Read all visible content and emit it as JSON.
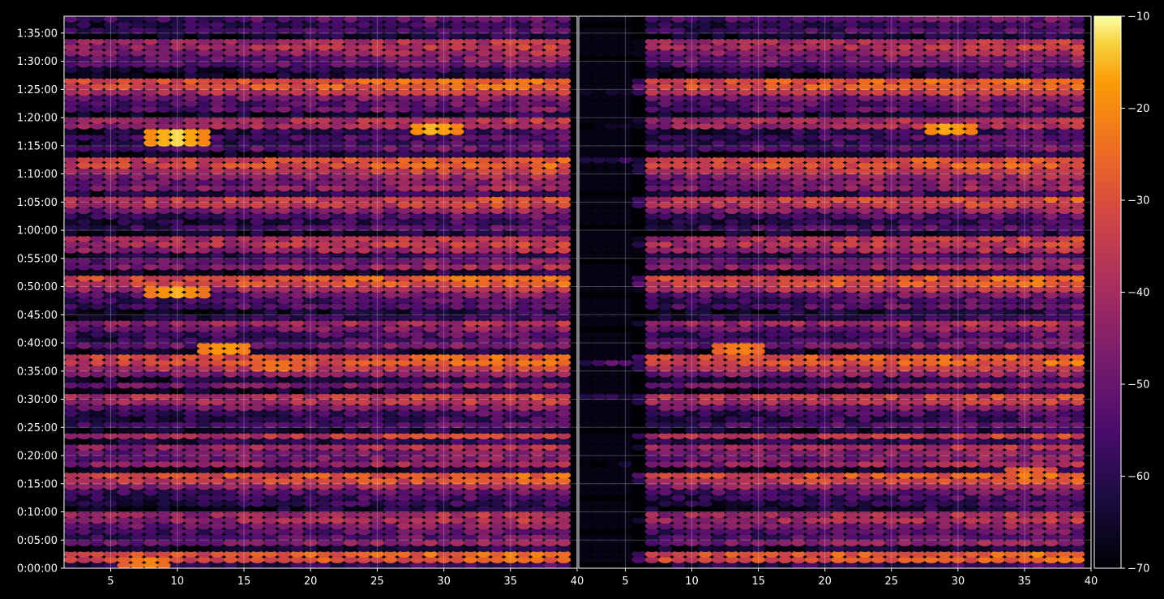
{
  "chart_data": [
    {
      "type": "heatmap",
      "panel": "left",
      "title": "",
      "xlabel": "",
      "ylabel": "",
      "xlim": [
        1.5,
        40
      ],
      "ylim": [
        "0:00:00",
        "1:38:00"
      ],
      "x_ticks": [
        "5",
        "10",
        "15",
        "20",
        "25",
        "30",
        "35",
        "40"
      ],
      "y_ticks": [
        "0:00:00",
        "0:05:00",
        "0:10:00",
        "0:15:00",
        "0:20:00",
        "0:25:00",
        "0:30:00",
        "0:35:00",
        "0:40:00",
        "0:45:00",
        "0:50:00",
        "0:55:00",
        "1:00:00",
        "1:05:00",
        "1:10:00",
        "1:15:00",
        "1:20:00",
        "1:25:00",
        "1:30:00",
        "1:35:00"
      ],
      "grid": true,
      "cell_value_range": [
        -70,
        -10
      ],
      "hotspots": [
        {
          "x": 9.9,
          "y": "1:16:30",
          "value": -12
        },
        {
          "x": 29.3,
          "y": "1:17:45",
          "value": -14
        },
        {
          "x": 9.9,
          "y": "0:48:45",
          "value": -15
        },
        {
          "x": 13.6,
          "y": "0:39:00",
          "value": -16
        },
        {
          "x": 17.5,
          "y": "0:35:45",
          "value": -22
        },
        {
          "x": 7.8,
          "y": "0:01:10",
          "value": -20
        }
      ]
    },
    {
      "type": "heatmap",
      "panel": "right",
      "title": "",
      "xlabel": "",
      "ylabel": "",
      "xlim": [
        1.5,
        40
      ],
      "ylim": [
        "0:00:00",
        "1:38:00"
      ],
      "x_ticks": [
        "5",
        "10",
        "15",
        "20",
        "25",
        "30",
        "35",
        "40"
      ],
      "grid": true,
      "cell_value_range": [
        -70,
        -10
      ],
      "hotspots": [
        {
          "x": 29.3,
          "y": "1:17:45",
          "value": -15
        },
        {
          "x": 13.6,
          "y": "0:39:00",
          "value": -20
        },
        {
          "x": 35.2,
          "y": "0:17:00",
          "value": -24
        }
      ]
    }
  ],
  "colorbar": {
    "colormap": "inferno",
    "range": [
      -70,
      -10
    ],
    "ticks": [
      "−10",
      "−20",
      "−30",
      "−40",
      "−50",
      "−60",
      "−70"
    ]
  },
  "colors": {
    "background": "#000000",
    "axes": "#ffffff",
    "grid": "#ffffff"
  }
}
